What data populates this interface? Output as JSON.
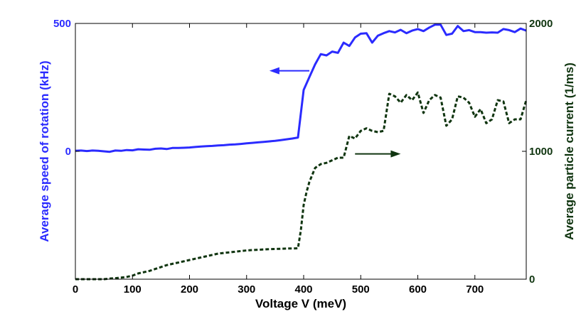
{
  "chart_data": {
    "type": "line",
    "xlabel": "Voltage V (meV)",
    "ylabel_left": "Average speed of rotation (kHz)",
    "ylabel_right": "Average particle current (1/ms)",
    "xlim": [
      0,
      790
    ],
    "ylim_left": [
      -500,
      500
    ],
    "ylim_right": [
      0,
      2000
    ],
    "x_ticks": [
      "0",
      "100",
      "200",
      "300",
      "400",
      "500",
      "600",
      "700"
    ],
    "y_left_ticks": [
      "0",
      "500"
    ],
    "y_right_ticks": [
      "0",
      "1000",
      "2000"
    ],
    "grid": false,
    "colors": {
      "left": "#2b2bff",
      "right": "#103510"
    },
    "series": [
      {
        "axis": "left",
        "style": "solid",
        "x": [
          0,
          10,
          20,
          30,
          40,
          50,
          60,
          70,
          80,
          90,
          100,
          110,
          120,
          130,
          140,
          150,
          160,
          170,
          180,
          190,
          200,
          210,
          220,
          230,
          240,
          250,
          260,
          270,
          280,
          290,
          300,
          310,
          320,
          330,
          340,
          350,
          360,
          370,
          380,
          390,
          400,
          410,
          420,
          430,
          440,
          450,
          460,
          470,
          480,
          490,
          500,
          510,
          520,
          530,
          540,
          550,
          560,
          570,
          580,
          590,
          600,
          610,
          620,
          630,
          640,
          650,
          660,
          670,
          680,
          690,
          700,
          710,
          720,
          730,
          740,
          750,
          760,
          770,
          780,
          790
        ],
        "values": [
          2,
          3,
          1,
          3,
          2,
          0,
          -2,
          3,
          2,
          5,
          4,
          8,
          7,
          6,
          10,
          11,
          9,
          13,
          13,
          14,
          15,
          17,
          19,
          20,
          21,
          23,
          24,
          26,
          27,
          29,
          31,
          33,
          35,
          37,
          39,
          41,
          44,
          47,
          50,
          54,
          240,
          290,
          340,
          380,
          375,
          390,
          385,
          425,
          412,
          445,
          460,
          462,
          425,
          452,
          462,
          470,
          465,
          475,
          462,
          472,
          478,
          470,
          484,
          495,
          495,
          455,
          460,
          490,
          470,
          474,
          466,
          466,
          464,
          465,
          464,
          478,
          474,
          466,
          480,
          472
        ]
      },
      {
        "axis": "right",
        "style": "dashed",
        "x": [
          0,
          10,
          20,
          30,
          40,
          50,
          60,
          70,
          80,
          90,
          100,
          110,
          120,
          130,
          140,
          150,
          160,
          170,
          180,
          190,
          200,
          210,
          220,
          230,
          240,
          250,
          260,
          270,
          280,
          290,
          300,
          310,
          320,
          330,
          340,
          350,
          360,
          370,
          380,
          390,
          395,
          400,
          405,
          410,
          420,
          430,
          440,
          450,
          460,
          470,
          480,
          490,
          500,
          510,
          520,
          530,
          540,
          550,
          560,
          570,
          580,
          590,
          600,
          610,
          620,
          630,
          640,
          650,
          660,
          670,
          680,
          690,
          700,
          710,
          720,
          730,
          740,
          750,
          760,
          770,
          780,
          790
        ],
        "values": [
          0,
          0,
          0,
          0,
          0,
          0,
          5,
          8,
          12,
          18,
          28,
          45,
          55,
          65,
          80,
          95,
          110,
          120,
          130,
          140,
          150,
          160,
          170,
          180,
          190,
          200,
          205,
          210,
          215,
          220,
          225,
          228,
          230,
          233,
          235,
          236,
          238,
          240,
          240,
          242,
          380,
          580,
          680,
          760,
          870,
          900,
          910,
          930,
          950,
          950,
          1120,
          1100,
          1160,
          1180,
          1160,
          1150,
          1160,
          1450,
          1430,
          1380,
          1440,
          1400,
          1460,
          1300,
          1400,
          1440,
          1420,
          1200,
          1250,
          1430,
          1420,
          1380,
          1270,
          1330,
          1220,
          1250,
          1400,
          1390,
          1220,
          1250,
          1250,
          1400
        ]
      }
    ],
    "arrows": [
      {
        "points_to": "left",
        "x_from": 410,
        "x_to": 340,
        "y_left": 315
      },
      {
        "points_to": "right",
        "x_from": 490,
        "x_to": 570,
        "y_right": 980
      }
    ]
  }
}
